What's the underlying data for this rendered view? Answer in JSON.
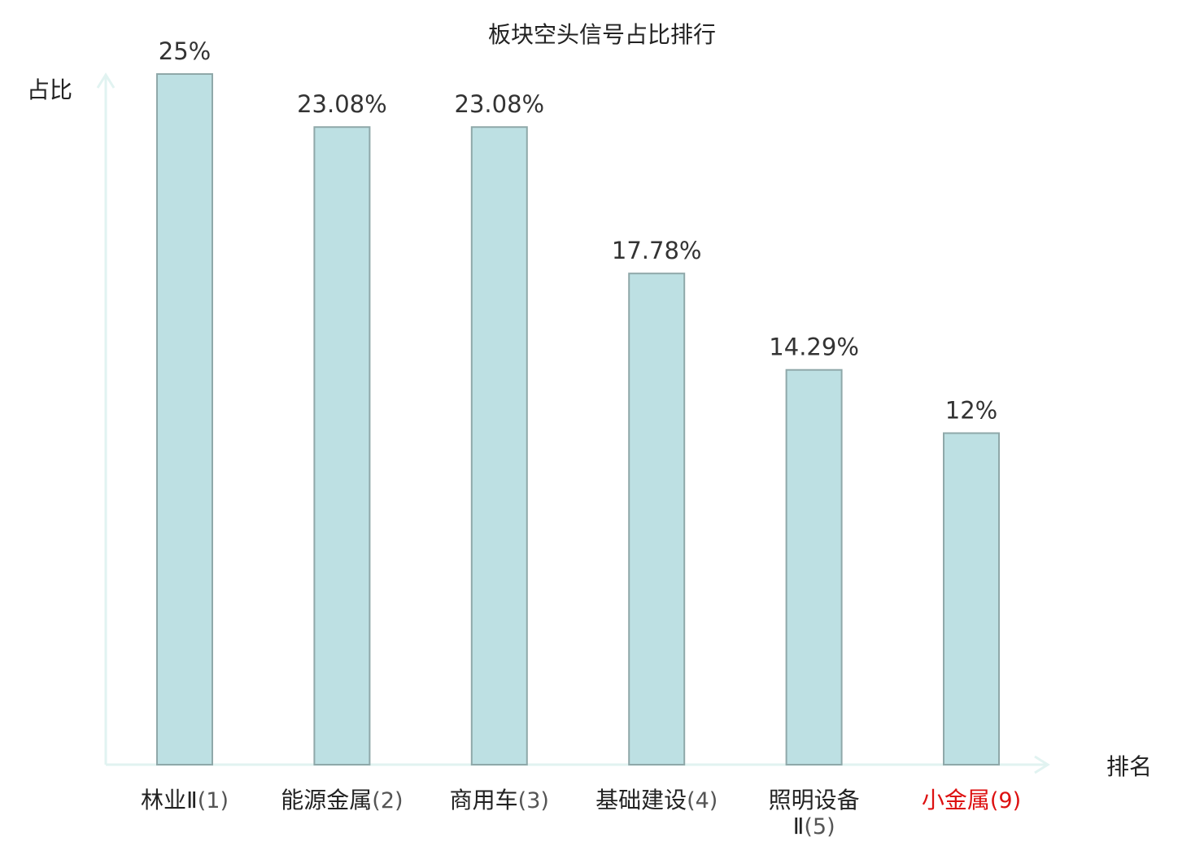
{
  "chart_data": {
    "type": "bar",
    "title": "板块空头信号占比排行",
    "xlabel": "排名",
    "ylabel": "占比",
    "ylim": [
      0,
      25
    ],
    "grid": false,
    "legend": "none",
    "categories": [
      {
        "name": "林业Ⅱ",
        "rank": "(1)",
        "highlight": false
      },
      {
        "name": "能源金属",
        "rank": "(2)",
        "highlight": false
      },
      {
        "name": "商用车",
        "rank": "(3)",
        "highlight": false
      },
      {
        "name": "基础建设",
        "rank": "(4)",
        "highlight": false
      },
      {
        "name": "照明设备",
        "name_line2": "Ⅱ",
        "rank": "(5)",
        "highlight": false
      },
      {
        "name": "小金属",
        "rank": "(9)",
        "highlight": true
      }
    ],
    "values": [
      25,
      23.08,
      23.08,
      17.78,
      14.29,
      12
    ],
    "value_labels": [
      "25%",
      "23.08%",
      "23.08%",
      "17.78%",
      "14.29%",
      "12%"
    ]
  },
  "colors": {
    "bar_fill": "#bde0e3",
    "bar_stroke": "#8fa8a9",
    "axis": "#e1f3f1",
    "text": "#222222",
    "rank_text": "#555555",
    "highlight": "#dd1111"
  }
}
